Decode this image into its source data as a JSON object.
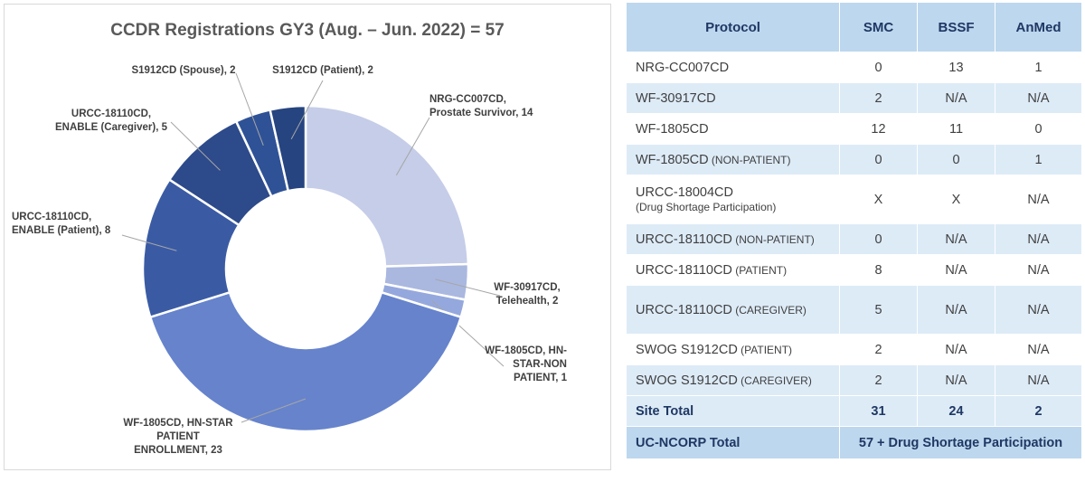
{
  "chart_data": {
    "type": "pie",
    "donut": true,
    "title": "CCDR Registrations GY3 (Aug. – Jun. 2022) = 57",
    "slices": [
      {
        "label": [
          "NRG-CC007CD,",
          "Prostate Survivor, 14"
        ],
        "value": 14,
        "color": "#c5cde8"
      },
      {
        "label": [
          "WF-30917CD,",
          "Telehealth, 2"
        ],
        "value": 2,
        "color": "#aab8e0"
      },
      {
        "label": [
          "WF-1805CD, HN-",
          "STAR-NON",
          "PATIENT, 1"
        ],
        "value": 1,
        "color": "#95a8dd"
      },
      {
        "label": [
          "WF-1805CD, HN-STAR",
          "PATIENT",
          "ENROLLMENT, 23"
        ],
        "value": 23,
        "color": "#6683cc"
      },
      {
        "label": [
          "URCC-18110CD,",
          "ENABLE (Patient), 8"
        ],
        "value": 8,
        "color": "#3a5ba4"
      },
      {
        "label": [
          "URCC-18110CD,",
          "ENABLE (Caregiver), 5"
        ],
        "value": 5,
        "color": "#2d4a8a"
      },
      {
        "label": [
          "S1912CD (Spouse), 2"
        ],
        "value": 2,
        "color": "#2f5296"
      },
      {
        "label": [
          "S1912CD (Patient), 2"
        ],
        "value": 2,
        "color": "#26447f"
      }
    ]
  },
  "table": {
    "headers": [
      "Protocol",
      "SMC",
      "BSSF",
      "AnMed"
    ],
    "rows": [
      {
        "protocol": "NRG-CC007CD",
        "sub": "",
        "small": false,
        "smc": "0",
        "bssf": "13",
        "anmed": "1"
      },
      {
        "protocol": "WF-30917CD",
        "sub": "",
        "small": false,
        "smc": "2",
        "bssf": "N/A",
        "anmed": "N/A"
      },
      {
        "protocol": "WF-1805CD",
        "sub": "",
        "small": false,
        "smc": "12",
        "bssf": "11",
        "anmed": "0"
      },
      {
        "protocol": "WF-1805CD",
        "sub": " (NON-PATIENT)",
        "small": false,
        "smc": "0",
        "bssf": "0",
        "anmed": "1"
      },
      {
        "protocol": "URCC-18004CD",
        "sub": "(Drug Shortage Participation)",
        "small": true,
        "smc": "X",
        "bssf": "X",
        "anmed": "N/A"
      },
      {
        "protocol": "URCC-18110CD",
        "sub": " (NON-PATIENT)",
        "small": false,
        "smc": "0",
        "bssf": "N/A",
        "anmed": "N/A"
      },
      {
        "protocol": "URCC-18110CD",
        "sub": " (PATIENT)",
        "small": false,
        "smc": "8",
        "bssf": "N/A",
        "anmed": "N/A"
      },
      {
        "protocol": "URCC-18110CD",
        "sub": " (CAREGIVER)",
        "small": false,
        "smc": "5",
        "bssf": "N/A",
        "anmed": "N/A"
      },
      {
        "protocol": "SWOG S1912CD",
        "sub": " (PATIENT)",
        "small": false,
        "smc": "2",
        "bssf": "N/A",
        "anmed": "N/A"
      },
      {
        "protocol": "SWOG S1912CD",
        "sub": " (CAREGIVER)",
        "small": false,
        "smc": "2",
        "bssf": "N/A",
        "anmed": "N/A"
      }
    ],
    "site_total": {
      "label": "Site Total",
      "smc": "31",
      "bssf": "24",
      "anmed": "2"
    },
    "grand_total": {
      "label": "UC-NCORP Total",
      "value": "57 + Drug Shortage Participation"
    }
  }
}
